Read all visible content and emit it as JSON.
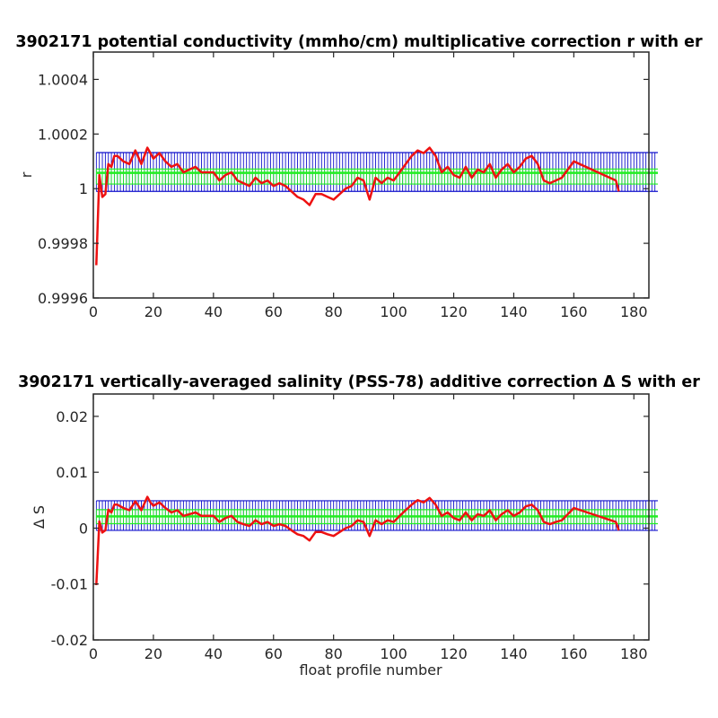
{
  "colors": {
    "series": "#ee1111",
    "error_outer": "#1111cc",
    "error_inner": "#22ee22",
    "axis": "#262626",
    "background": "#ffffff"
  },
  "chart_data": [
    {
      "type": "line",
      "title": "3902171 potential conductivity (mmho/cm) multiplicative correction r with er",
      "xlabel": "",
      "ylabel": "r",
      "xlim": [
        0,
        185
      ],
      "ylim": [
        0.9996,
        1.0005
      ],
      "xticks": [
        0,
        20,
        40,
        60,
        80,
        100,
        120,
        140,
        160,
        180
      ],
      "xtick_labels": [
        "0",
        "20",
        "40",
        "60",
        "80",
        "100",
        "120",
        "140",
        "160",
        "180"
      ],
      "yticks": [
        0.9996,
        0.9998,
        1,
        1.0002,
        1.0004
      ],
      "ytick_labels": [
        "0.9996",
        "0.9998",
        "1",
        "1.0002",
        "1.0004"
      ],
      "grid": false,
      "error_band_outer": [
        0.99999,
        1.000132
      ],
      "error_band_inner": [
        1.000017,
        1.000072
      ],
      "error_center": 1.000058,
      "error_x_range": [
        1,
        193
      ],
      "series": [
        {
          "x": [
            1,
            2,
            3,
            4,
            5,
            6,
            7,
            8,
            10,
            12,
            14,
            16,
            18,
            19,
            20,
            22,
            24,
            26,
            28,
            30,
            32,
            34,
            36,
            38,
            40,
            42,
            44,
            46,
            48,
            50,
            52,
            54,
            56,
            58,
            60,
            62,
            64,
            66,
            68,
            70,
            72,
            74,
            76,
            78,
            80,
            82,
            84,
            86,
            88,
            90,
            92,
            94,
            96,
            98,
            100,
            102,
            104,
            106,
            108,
            110,
            112,
            114,
            116,
            118,
            120,
            122,
            124,
            126,
            128,
            130,
            132,
            134,
            136,
            138,
            140,
            142,
            144,
            146,
            148,
            150,
            152,
            154,
            156,
            158,
            160,
            174,
            175
          ],
          "y": [
            0.99972,
            1.00005,
            0.99997,
            0.99998,
            1.00009,
            1.00008,
            1.00012,
            1.00012,
            1.0001,
            1.00009,
            1.00014,
            1.00009,
            1.00015,
            1.00013,
            1.00011,
            1.00013,
            1.0001,
            1.00008,
            1.00009,
            1.00006,
            1.00007,
            1.00008,
            1.00006,
            1.00006,
            1.00006,
            1.00003,
            1.00005,
            1.00006,
            1.00003,
            1.00002,
            1.00001,
            1.00004,
            1.00002,
            1.00003,
            1.00001,
            1.00002,
            1.00001,
            0.99999,
            0.99997,
            0.99996,
            0.99994,
            0.99998,
            0.99998,
            0.99997,
            0.99996,
            0.99998,
            1.0,
            1.00001,
            1.00004,
            1.00003,
            0.99996,
            1.00004,
            1.00002,
            1.00004,
            1.00003,
            1.00006,
            1.00009,
            1.00012,
            1.00014,
            1.00013,
            1.00015,
            1.00012,
            1.00006,
            1.00008,
            1.00005,
            1.00004,
            1.00008,
            1.00004,
            1.00007,
            1.00006,
            1.00009,
            1.00004,
            1.00007,
            1.00009,
            1.00006,
            1.00008,
            1.00011,
            1.00012,
            1.00009,
            1.00003,
            1.00002,
            1.00003,
            1.00004,
            1.00007,
            1.0001,
            1.00003,
            0.99999
          ]
        }
      ]
    },
    {
      "type": "line",
      "title": "3902171 vertically-averaged salinity (PSS-78) additive correction Δ S with er",
      "xlabel": "float profile number",
      "ylabel": "Δ S",
      "xlim": [
        0,
        185
      ],
      "ylim": [
        -0.02,
        0.024
      ],
      "xticks": [
        0,
        20,
        40,
        60,
        80,
        100,
        120,
        140,
        160,
        180
      ],
      "xtick_labels": [
        "0",
        "20",
        "40",
        "60",
        "80",
        "100",
        "120",
        "140",
        "160",
        "180"
      ],
      "yticks": [
        -0.02,
        -0.01,
        0,
        0.01,
        0.02
      ],
      "ytick_labels": [
        "-0.02",
        "-0.01",
        "0",
        "0.01",
        "0.02"
      ],
      "grid": false,
      "error_band_outer": [
        -0.0004,
        0.0049
      ],
      "error_band_inner": [
        0.0008,
        0.0033
      ],
      "error_center": 0.0021,
      "error_x_range": [
        1,
        193
      ],
      "series": [
        {
          "x": [
            1,
            2,
            3,
            4,
            5,
            6,
            7,
            8,
            10,
            12,
            14,
            16,
            18,
            19,
            20,
            22,
            24,
            26,
            28,
            30,
            32,
            34,
            36,
            38,
            40,
            42,
            44,
            46,
            48,
            50,
            52,
            54,
            56,
            58,
            60,
            62,
            64,
            66,
            68,
            70,
            72,
            74,
            76,
            78,
            80,
            82,
            84,
            86,
            88,
            90,
            92,
            94,
            96,
            98,
            100,
            102,
            104,
            106,
            108,
            110,
            112,
            114,
            116,
            118,
            120,
            122,
            124,
            126,
            128,
            130,
            132,
            134,
            136,
            138,
            140,
            142,
            144,
            146,
            148,
            150,
            152,
            154,
            156,
            158,
            160,
            174,
            175
          ],
          "y": [
            -0.0102,
            0.0012,
            -0.0008,
            -0.0004,
            0.0033,
            0.0028,
            0.0042,
            0.0042,
            0.0036,
            0.0032,
            0.0048,
            0.0032,
            0.0056,
            0.0046,
            0.004,
            0.0046,
            0.0036,
            0.0028,
            0.0032,
            0.0022,
            0.0025,
            0.0028,
            0.0022,
            0.0022,
            0.0022,
            0.0011,
            0.0018,
            0.0022,
            0.0011,
            0.0007,
            0.0004,
            0.0014,
            0.0007,
            0.0011,
            0.0004,
            0.0007,
            0.0004,
            -0.0004,
            -0.0011,
            -0.0014,
            -0.0022,
            -0.0007,
            -0.0007,
            -0.0011,
            -0.0014,
            -0.0007,
            0.0,
            0.0004,
            0.0014,
            0.0011,
            -0.0014,
            0.0014,
            0.0007,
            0.0014,
            0.0011,
            0.0022,
            0.0032,
            0.0042,
            0.005,
            0.0046,
            0.0054,
            0.0042,
            0.0022,
            0.0028,
            0.0018,
            0.0014,
            0.0028,
            0.0014,
            0.0025,
            0.0022,
            0.0032,
            0.0014,
            0.0025,
            0.0032,
            0.0022,
            0.0028,
            0.0039,
            0.0042,
            0.0032,
            0.0011,
            0.0007,
            0.0011,
            0.0014,
            0.0025,
            0.0036,
            0.0011,
            -0.0004
          ]
        }
      ]
    }
  ]
}
